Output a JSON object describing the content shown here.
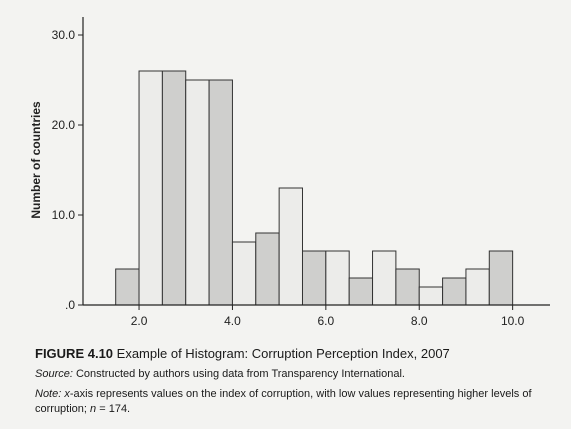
{
  "chart_data": {
    "type": "bar",
    "subtype": "histogram",
    "xlabel": "",
    "ylabel": "Number of countries",
    "xlim": [
      0.8,
      10.8
    ],
    "ylim": [
      0,
      32
    ],
    "bin_width": 0.5,
    "bins": [
      {
        "start": 1.5,
        "end": 2.0,
        "value": 4
      },
      {
        "start": 2.0,
        "end": 2.5,
        "value": 26
      },
      {
        "start": 2.5,
        "end": 3.0,
        "value": 26
      },
      {
        "start": 3.0,
        "end": 3.5,
        "value": 25
      },
      {
        "start": 3.5,
        "end": 4.0,
        "value": 25
      },
      {
        "start": 4.0,
        "end": 4.5,
        "value": 7
      },
      {
        "start": 4.5,
        "end": 5.0,
        "value": 8
      },
      {
        "start": 5.0,
        "end": 5.5,
        "value": 13
      },
      {
        "start": 5.5,
        "end": 6.0,
        "value": 6
      },
      {
        "start": 6.0,
        "end": 6.5,
        "value": 6
      },
      {
        "start": 6.5,
        "end": 7.0,
        "value": 3
      },
      {
        "start": 7.0,
        "end": 7.5,
        "value": 6
      },
      {
        "start": 7.5,
        "end": 8.0,
        "value": 4
      },
      {
        "start": 8.0,
        "end": 8.5,
        "value": 2
      },
      {
        "start": 8.5,
        "end": 9.0,
        "value": 3
      },
      {
        "start": 9.0,
        "end": 9.5,
        "value": 4
      },
      {
        "start": 9.5,
        "end": 10.0,
        "value": 6
      }
    ],
    "bar_fills": [
      "#cfcfcd",
      "#ececea",
      "#cfcfcd",
      "#ececea",
      "#cfcfcd",
      "#ececea",
      "#cfcfcd",
      "#ececea",
      "#cfcfcd",
      "#ececea",
      "#cfcfcd",
      "#ececea",
      "#cfcfcd",
      "#ececea",
      "#cfcfcd",
      "#ececea",
      "#cfcfcd"
    ],
    "x_ticks": [
      {
        "value": 2.0,
        "label": "2.0"
      },
      {
        "value": 4.0,
        "label": "4.0"
      },
      {
        "value": 6.0,
        "label": "6.0"
      },
      {
        "value": 8.0,
        "label": "8.0"
      },
      {
        "value": 10.0,
        "label": "10.0"
      }
    ],
    "y_ticks": [
      {
        "value": 0,
        "label": ".0"
      },
      {
        "value": 10,
        "label": "10.0"
      },
      {
        "value": 20,
        "label": "20.0"
      },
      {
        "value": 30,
        "label": "30.0"
      }
    ],
    "grid": false
  },
  "caption": {
    "figure_number": "FIGURE 4.10",
    "title": "Example of Histogram: Corruption Perception Index, 2007",
    "source_label": "Source:",
    "source_text": "Constructed by authors using data from Transparency International.",
    "note_label": "Note:",
    "note_x_italic": "x",
    "note_text": "-axis represents values on the index of corruption, with low values representing higher levels of corruption;",
    "note_n_italic": "n",
    "note_n_value": " = 174."
  },
  "colors": {
    "axis": "#222222",
    "bar_stroke": "#333333"
  }
}
